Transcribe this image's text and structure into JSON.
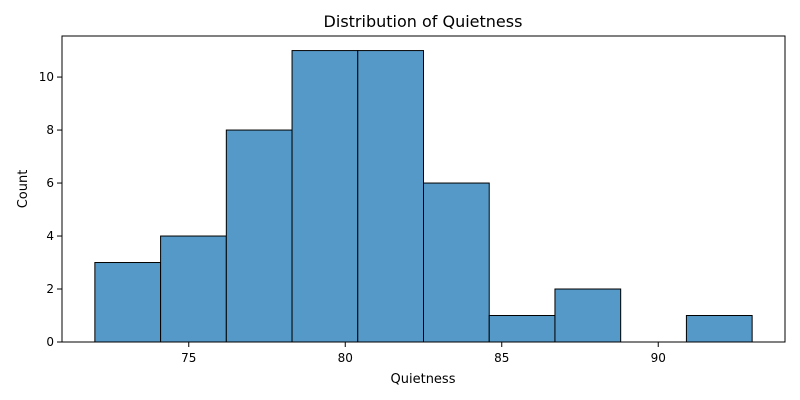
{
  "chart_data": {
    "type": "bar",
    "title": "Distribution of Quietness",
    "xlabel": "Quietness",
    "ylabel": "Count",
    "bins": [
      {
        "x0": 72.0,
        "x1": 74.1,
        "count": 3
      },
      {
        "x0": 74.1,
        "x1": 76.2,
        "count": 4
      },
      {
        "x0": 76.2,
        "x1": 78.3,
        "count": 8
      },
      {
        "x0": 78.3,
        "x1": 80.4,
        "count": 11
      },
      {
        "x0": 80.4,
        "x1": 82.5,
        "count": 11
      },
      {
        "x0": 82.5,
        "x1": 84.6,
        "count": 6
      },
      {
        "x0": 84.6,
        "x1": 86.7,
        "count": 1
      },
      {
        "x0": 86.7,
        "x1": 88.8,
        "count": 2
      },
      {
        "x0": 88.8,
        "x1": 90.9,
        "count": 0
      },
      {
        "x0": 90.9,
        "x1": 93.0,
        "count": 1
      }
    ],
    "xlim": [
      70.95,
      94.05
    ],
    "ylim": [
      0,
      11.55
    ],
    "xticks": [
      75,
      80,
      85,
      90
    ],
    "yticks": [
      0,
      2,
      4,
      6,
      8,
      10
    ],
    "grid": false,
    "colors": {
      "bar": "#5599c8",
      "edge": "#000000"
    }
  }
}
